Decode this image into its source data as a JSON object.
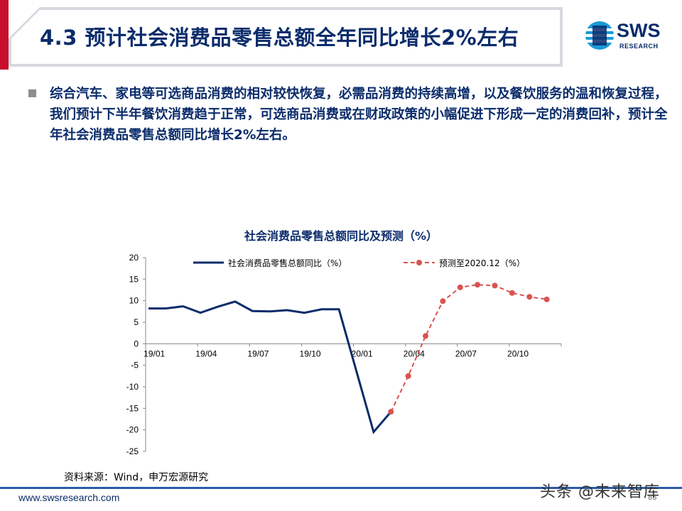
{
  "header": {
    "title": "4.3 预计社会消费品零售总额全年同比增长2%左右",
    "logo_text": "SWS",
    "logo_sub": "RESEARCH",
    "colors": {
      "accent_red": "#c8102e",
      "navy": "#0b2c6b"
    }
  },
  "body": {
    "bullet_text": "综合汽车、家电等可选商品消费的相对较快恢复，必需品消费的持续高增，以及餐饮服务的温和恢复过程，我们预计下半年餐饮消费趋于正常，可选商品消费或在财政政策的小幅促进下形成一定的消费回补，预计全年社会消费品零售总额同比增长2%左右。"
  },
  "chart_data": {
    "type": "line",
    "title": "社会消费品零售总额同比及预测（%）",
    "xlabel": "",
    "ylabel": "",
    "ylim": [
      -25,
      20
    ],
    "yticks": [
      20,
      15,
      10,
      5,
      0,
      -5,
      -10,
      -15,
      -20,
      -25
    ],
    "xtick_labels": [
      "19/01",
      "19/04",
      "19/07",
      "19/10",
      "20/01",
      "20/04",
      "20/07",
      "20/10"
    ],
    "legend_position": "top",
    "grid": false,
    "x_months": [
      "19/01",
      "19/02",
      "19/03",
      "19/04",
      "19/05",
      "19/06",
      "19/07",
      "19/08",
      "19/09",
      "19/10",
      "19/11",
      "19/12",
      "20/01",
      "20/02",
      "20/03",
      "20/04",
      "20/05",
      "20/06",
      "20/07",
      "20/08",
      "20/09",
      "20/10",
      "20/11",
      "20/12"
    ],
    "series": [
      {
        "name": "社会消费品零售总额同比（%）",
        "style": "solid",
        "color": "#0b2c6b",
        "points": [
          [
            "19/01",
            8.2
          ],
          [
            "19/02",
            8.2
          ],
          [
            "19/03",
            8.7
          ],
          [
            "19/04",
            7.2
          ],
          [
            "19/05",
            8.6
          ],
          [
            "19/06",
            9.8
          ],
          [
            "19/07",
            7.6
          ],
          [
            "19/08",
            7.5
          ],
          [
            "19/09",
            7.8
          ],
          [
            "19/10",
            7.2
          ],
          [
            "19/11",
            8.0
          ],
          [
            "19/12",
            8.0
          ],
          [
            "20/02",
            -20.5
          ],
          [
            "20/03",
            -15.8
          ]
        ]
      },
      {
        "name": "预测至2020.12（%）",
        "style": "dashed",
        "color": "#d9534f",
        "points": [
          [
            "20/03",
            -15.8
          ],
          [
            "20/04",
            -7.5
          ],
          [
            "20/05",
            1.8
          ],
          [
            "20/06",
            9.9
          ],
          [
            "20/07",
            13.1
          ],
          [
            "20/08",
            13.7
          ],
          [
            "20/09",
            13.5
          ],
          [
            "20/10",
            11.8
          ],
          [
            "20/11",
            10.9
          ],
          [
            "20/12",
            10.3
          ]
        ]
      }
    ]
  },
  "source": "资料来源：Wind，申万宏源研究",
  "footer": {
    "url": "www.swsresearch.com",
    "page": "85"
  },
  "watermark": "头条 @未来智库"
}
